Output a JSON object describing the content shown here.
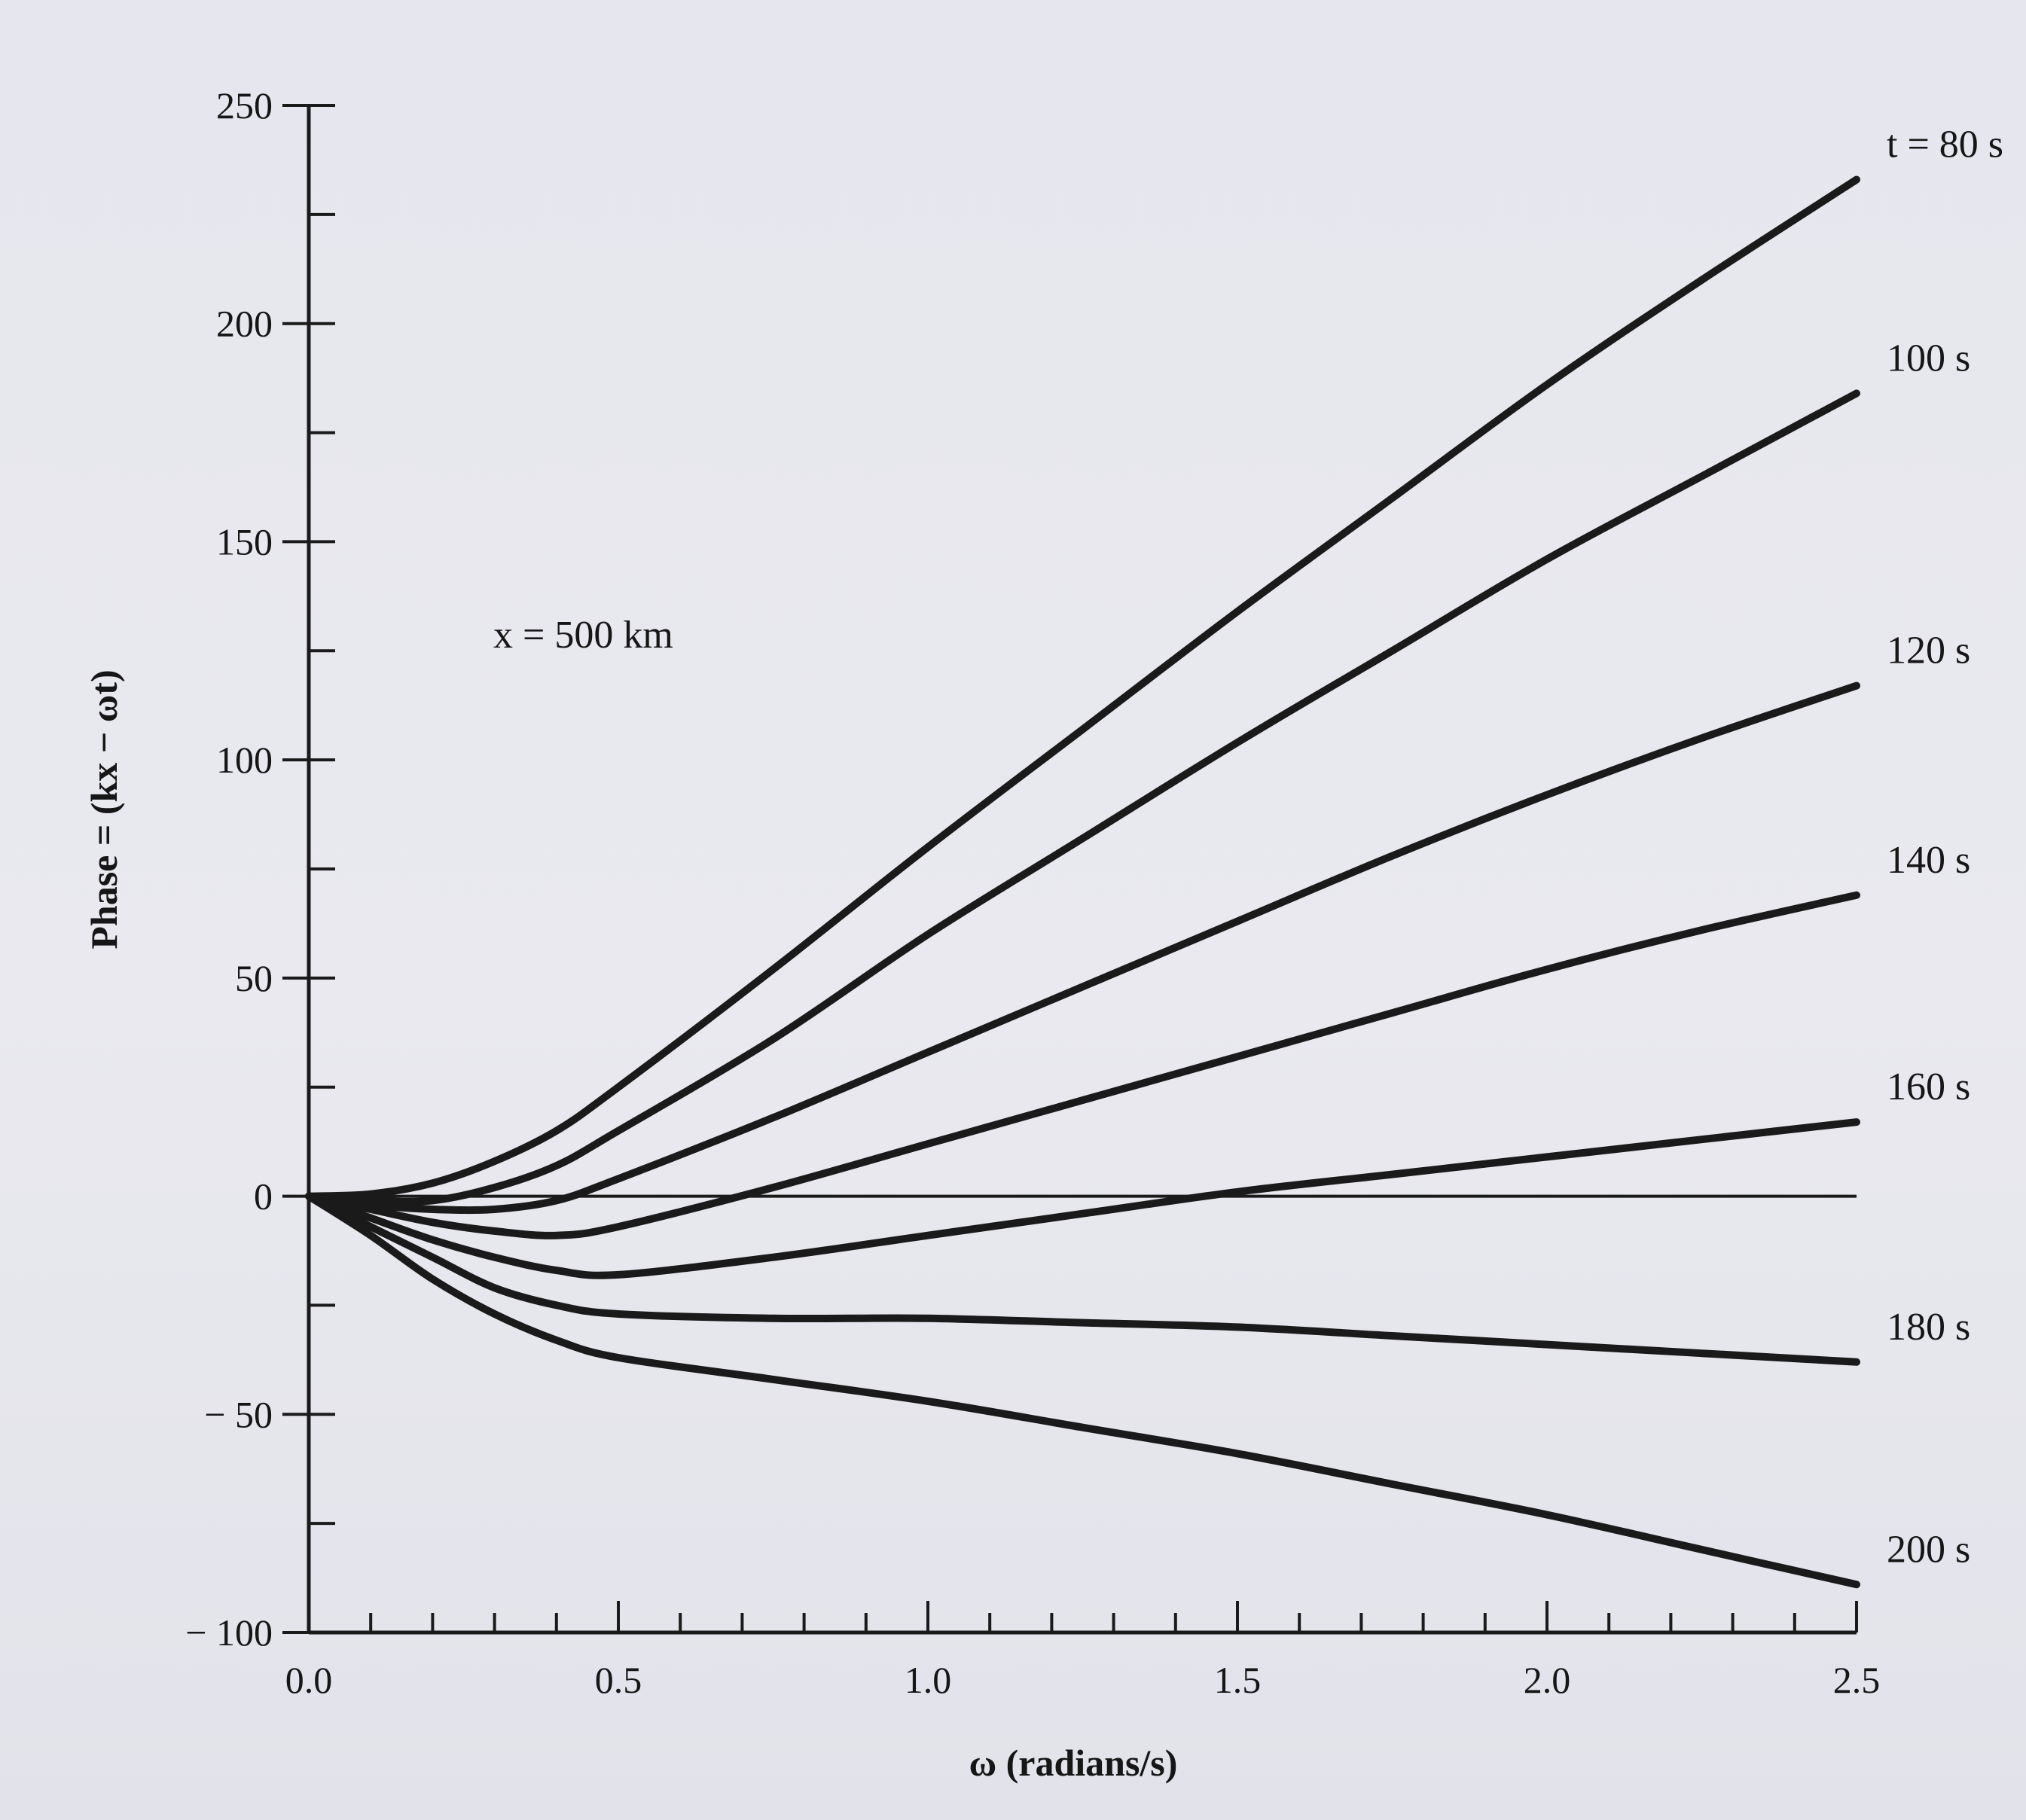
{
  "chart_data": {
    "type": "line",
    "xlabel": "ω (radians/s)",
    "ylabel": "Phase = (kx − ωt)",
    "xlim": [
      0,
      2.5
    ],
    "ylim": [
      -100,
      250
    ],
    "x_ticks": [
      0.0,
      0.5,
      1.0,
      1.5,
      2.0,
      2.5
    ],
    "x_tick_labels": [
      "0.0",
      "0.5",
      "1.0",
      "1.5",
      "2.0",
      "2.5"
    ],
    "y_ticks": [
      -100,
      -50,
      0,
      50,
      100,
      150,
      200,
      250
    ],
    "y_tick_labels": [
      "− 100",
      "− 50",
      "0",
      "50",
      "100",
      "150",
      "200",
      "250"
    ],
    "annotation": "x = 500 km",
    "grid": false,
    "x": [
      0.0,
      0.1,
      0.2,
      0.3,
      0.4,
      0.5,
      0.75,
      1.0,
      1.25,
      1.5,
      1.75,
      2.0,
      2.25,
      2.5
    ],
    "series": [
      {
        "name": "t = 80 s",
        "values": [
          0,
          0.5,
          3,
          8,
          15,
          25,
          52,
          80,
          107,
          134,
          160,
          186,
          210,
          233
        ]
      },
      {
        "name": "100 s",
        "values": [
          0,
          -1,
          -1,
          2,
          7,
          15,
          36,
          60,
          82,
          104,
          125,
          146,
          165,
          184
        ]
      },
      {
        "name": "120 s",
        "values": [
          0,
          -2,
          -3,
          -3,
          -1,
          4,
          18,
          33,
          48,
          63,
          78,
          92,
          105,
          117
        ]
      },
      {
        "name": "140 s",
        "values": [
          0,
          -3,
          -6,
          -8,
          -9,
          -7,
          2,
          12,
          22,
          32,
          42,
          52,
          61,
          69
        ]
      },
      {
        "name": "160 s",
        "values": [
          0,
          -5,
          -10,
          -14,
          -17,
          -18,
          -14,
          -9,
          -4,
          1,
          5,
          9,
          13,
          17
        ]
      },
      {
        "name": "180 s",
        "values": [
          0,
          -7,
          -14,
          -21,
          -25,
          -27,
          -28,
          -28,
          -29,
          -30,
          -32,
          -34,
          -36,
          -38
        ]
      },
      {
        "name": "200 s",
        "values": [
          0,
          -9,
          -19,
          -27,
          -33,
          -37,
          -42,
          -47,
          -53,
          -59,
          -66,
          -73,
          -81,
          -89
        ]
      }
    ]
  }
}
